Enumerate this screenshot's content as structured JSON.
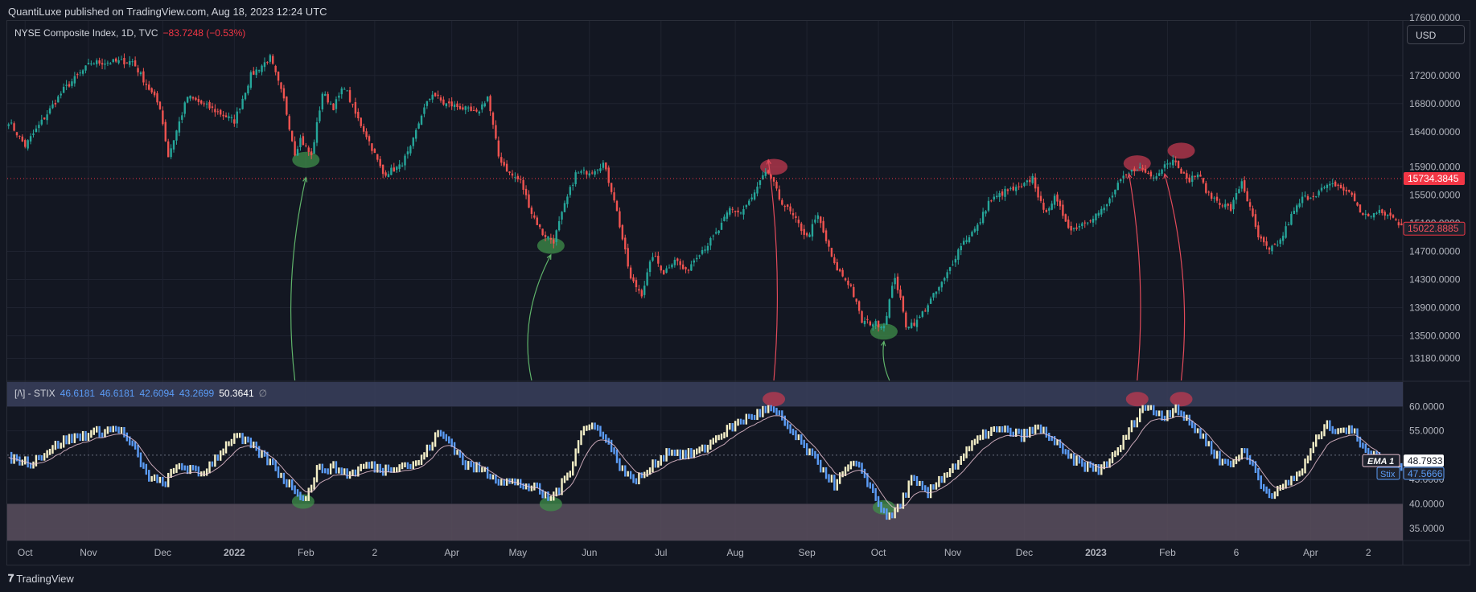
{
  "header": {
    "published": "QuantiLuxe published on TradingView.com, Aug 18, 2023 12:24 UTC"
  },
  "currency_label": "USD",
  "footer": {
    "brand": "TradingView",
    "logo_glyph": "𝟕"
  },
  "colors": {
    "background": "#131722",
    "grid": "#1f2330",
    "up": "#26a69a",
    "down": "#ef5350",
    "stix_up": "#f5f0c8",
    "stix_down": "#5b9cf6",
    "ema": "#e8c0d0",
    "price_line": "#f23645",
    "band_top": "#3a3f5c",
    "band_bottom": "#5b4f5e",
    "highlight_green": "#3f8f4a",
    "highlight_red": "#c0394f"
  },
  "chart_data": [
    {
      "type": "candlestick",
      "title": "NYSE Composite Index, 1D, TVC",
      "symbol": "NYSE Composite Index",
      "interval": "1D",
      "source": "TVC",
      "change_text": "−83.7248 (−0.53%)",
      "ylim": [
        12900,
        17700
      ],
      "y_ticks": [
        17200,
        16800,
        16400,
        15900,
        15500,
        14700,
        14300,
        13900,
        13500,
        13180
      ],
      "y_tick_labels": [
        "17200.0000",
        "16800.0000",
        "16400.0000",
        "15900.0000",
        "15500.0000",
        "14700.0000",
        "14300.0000",
        "13900.0000",
        "13500.0000",
        "13180.0000"
      ],
      "top_partial_label": "17600.0000",
      "current_price": 15734.3845,
      "current_price_label": "15734.3845",
      "secondary_price": 15022.8885,
      "secondary_price_label": "15022.8885",
      "partial_label": "15100.0000",
      "x_axis_labels": [
        "Oct",
        "Nov",
        "Dec",
        "2022",
        "Feb",
        "2",
        "Apr",
        "May",
        "Jun",
        "Jul",
        "Aug",
        "Sep",
        "Oct",
        "Nov",
        "Dec",
        "2023",
        "Feb",
        "6",
        "Apr",
        "2"
      ],
      "x_axis_bold": [
        "2022",
        "2023"
      ],
      "x_axis_index": [
        6,
        29,
        56,
        82,
        108,
        133,
        161,
        185,
        211,
        237,
        264,
        290,
        316,
        343,
        369,
        395,
        421,
        446,
        473,
        494
      ],
      "anchors": [
        [
          0,
          16550
        ],
        [
          6,
          16200
        ],
        [
          20,
          17000
        ],
        [
          30,
          17380
        ],
        [
          45,
          17400
        ],
        [
          55,
          16750
        ],
        [
          58,
          16050
        ],
        [
          65,
          16900
        ],
        [
          75,
          16700
        ],
        [
          82,
          16550
        ],
        [
          88,
          17200
        ],
        [
          95,
          17450
        ],
        [
          100,
          16850
        ],
        [
          104,
          16100
        ],
        [
          106,
          16300
        ],
        [
          110,
          16050
        ],
        [
          114,
          16950
        ],
        [
          118,
          16750
        ],
        [
          122,
          17050
        ],
        [
          126,
          16650
        ],
        [
          130,
          16350
        ],
        [
          136,
          15800
        ],
        [
          142,
          15900
        ],
        [
          146,
          16150
        ],
        [
          150,
          16650
        ],
        [
          154,
          16950
        ],
        [
          158,
          16800
        ],
        [
          164,
          16750
        ],
        [
          170,
          16650
        ],
        [
          174,
          16900
        ],
        [
          178,
          16050
        ],
        [
          182,
          15800
        ],
        [
          186,
          15700
        ],
        [
          190,
          15250
        ],
        [
          194,
          14950
        ],
        [
          198,
          14850
        ],
        [
          202,
          15350
        ],
        [
          206,
          15800
        ],
        [
          212,
          15850
        ],
        [
          216,
          15950
        ],
        [
          220,
          15450
        ],
        [
          226,
          14300
        ],
        [
          230,
          14100
        ],
        [
          234,
          14650
        ],
        [
          238,
          14400
        ],
        [
          242,
          14600
        ],
        [
          246,
          14400
        ],
        [
          250,
          14650
        ],
        [
          254,
          14800
        ],
        [
          258,
          15000
        ],
        [
          262,
          15300
        ],
        [
          266,
          15250
        ],
        [
          270,
          15450
        ],
        [
          274,
          15750
        ],
        [
          276,
          15820
        ],
        [
          278,
          15650
        ],
        [
          280,
          15450
        ],
        [
          284,
          15250
        ],
        [
          290,
          14900
        ],
        [
          294,
          15200
        ],
        [
          300,
          14500
        ],
        [
          306,
          14200
        ],
        [
          310,
          13700
        ],
        [
          314,
          13680
        ],
        [
          318,
          13650
        ],
        [
          322,
          14350
        ],
        [
          326,
          13650
        ],
        [
          330,
          13700
        ],
        [
          334,
          13950
        ],
        [
          340,
          14300
        ],
        [
          346,
          14800
        ],
        [
          352,
          15050
        ],
        [
          356,
          15400
        ],
        [
          362,
          15550
        ],
        [
          368,
          15600
        ],
        [
          372,
          15750
        ],
        [
          376,
          15250
        ],
        [
          380,
          15450
        ],
        [
          386,
          15000
        ],
        [
          392,
          15150
        ],
        [
          398,
          15300
        ],
        [
          404,
          15700
        ],
        [
          410,
          15900
        ],
        [
          416,
          15750
        ],
        [
          420,
          15950
        ],
        [
          424,
          16000
        ],
        [
          428,
          15700
        ],
        [
          432,
          15800
        ],
        [
          436,
          15500
        ],
        [
          440,
          15400
        ],
        [
          444,
          15300
        ],
        [
          448,
          15700
        ],
        [
          454,
          14900
        ],
        [
          458,
          14700
        ],
        [
          462,
          14850
        ],
        [
          466,
          15200
        ],
        [
          470,
          15450
        ],
        [
          474,
          15500
        ],
        [
          478,
          15600
        ],
        [
          482,
          15650
        ],
        [
          488,
          15500
        ],
        [
          492,
          15200
        ],
        [
          498,
          15250
        ],
        [
          502,
          15200
        ],
        [
          505,
          15100
        ]
      ],
      "highlights": [
        {
          "index": 108,
          "value": 16000,
          "color": "green"
        },
        {
          "index": 197,
          "value": 14780,
          "color": "green"
        },
        {
          "index": 278,
          "value": 15900,
          "color": "red"
        },
        {
          "index": 318,
          "value": 13560,
          "color": "green"
        },
        {
          "index": 410,
          "value": 15950,
          "color": "red"
        },
        {
          "index": 426,
          "value": 16130,
          "color": "red"
        }
      ]
    },
    {
      "type": "bar",
      "title": "[/\\] - STIX",
      "indicator": "STIX",
      "legend_values": [
        "46.6181",
        "46.6181",
        "42.6094",
        "43.2699"
      ],
      "legend_value_white": "50.3641",
      "legend_extra": "∅",
      "ylim": [
        32.5,
        64.5
      ],
      "y_ticks": [
        60,
        55,
        45,
        40,
        35
      ],
      "y_tick_labels": [
        "60.0000",
        "55.0000",
        "45.0000",
        "40.0000",
        "35.0000"
      ],
      "bands": [
        {
          "from": 60,
          "to": 65,
          "name": "overbought"
        },
        {
          "from": 32.5,
          "to": 40,
          "name": "oversold"
        }
      ],
      "mid_line": 50,
      "ema_label": "EMA 1",
      "ema_value": "48.7933",
      "stix_label": "Stix",
      "stix_value": "47.5666",
      "anchors": [
        [
          0,
          49.5
        ],
        [
          8,
          48.5
        ],
        [
          20,
          53
        ],
        [
          30,
          54.5
        ],
        [
          40,
          55.5
        ],
        [
          46,
          51
        ],
        [
          50,
          46
        ],
        [
          56,
          44
        ],
        [
          62,
          48
        ],
        [
          70,
          46
        ],
        [
          76,
          50
        ],
        [
          82,
          54
        ],
        [
          88,
          52
        ],
        [
          96,
          48
        ],
        [
          100,
          45
        ],
        [
          104,
          43
        ],
        [
          108,
          41
        ],
        [
          112,
          47
        ],
        [
          118,
          47.5
        ],
        [
          124,
          46
        ],
        [
          130,
          48
        ],
        [
          136,
          47
        ],
        [
          142,
          48
        ],
        [
          148,
          48
        ],
        [
          152,
          51
        ],
        [
          156,
          54.5
        ],
        [
          160,
          53
        ],
        [
          166,
          48
        ],
        [
          172,
          47
        ],
        [
          178,
          45
        ],
        [
          186,
          44
        ],
        [
          192,
          43
        ],
        [
          196,
          41
        ],
        [
          200,
          43
        ],
        [
          204,
          47
        ],
        [
          208,
          55
        ],
        [
          212,
          56
        ],
        [
          216,
          54.5
        ],
        [
          222,
          48
        ],
        [
          226,
          45
        ],
        [
          230,
          45.5
        ],
        [
          236,
          49
        ],
        [
          240,
          51
        ],
        [
          246,
          50
        ],
        [
          252,
          51
        ],
        [
          258,
          54
        ],
        [
          262,
          55.5
        ],
        [
          266,
          57
        ],
        [
          272,
          58.5
        ],
        [
          276,
          59.5
        ],
        [
          280,
          58
        ],
        [
          284,
          55
        ],
        [
          290,
          51
        ],
        [
          296,
          47
        ],
        [
          300,
          44
        ],
        [
          306,
          48
        ],
        [
          310,
          47
        ],
        [
          316,
          40
        ],
        [
          320,
          37
        ],
        [
          324,
          40
        ],
        [
          328,
          45
        ],
        [
          334,
          42
        ],
        [
          338,
          45
        ],
        [
          344,
          48
        ],
        [
          350,
          52
        ],
        [
          356,
          55
        ],
        [
          362,
          55
        ],
        [
          368,
          54
        ],
        [
          374,
          55.5
        ],
        [
          378,
          54
        ],
        [
          384,
          50
        ],
        [
          390,
          48
        ],
        [
          396,
          47
        ],
        [
          402,
          50
        ],
        [
          408,
          56
        ],
        [
          412,
          60
        ],
        [
          416,
          59
        ],
        [
          420,
          58
        ],
        [
          424,
          60
        ],
        [
          428,
          57
        ],
        [
          432,
          55
        ],
        [
          436,
          52
        ],
        [
          440,
          49
        ],
        [
          444,
          48
        ],
        [
          448,
          51
        ],
        [
          452,
          48
        ],
        [
          456,
          43
        ],
        [
          460,
          42
        ],
        [
          464,
          44
        ],
        [
          470,
          47
        ],
        [
          474,
          52
        ],
        [
          478,
          56
        ],
        [
          482,
          55.5
        ],
        [
          488,
          55
        ],
        [
          492,
          52
        ],
        [
          496,
          50
        ],
        [
          500,
          48
        ],
        [
          505,
          47.5
        ]
      ],
      "highlights": [
        {
          "index": 107,
          "value": 40.5,
          "color": "green"
        },
        {
          "index": 197,
          "value": 40.0,
          "color": "green"
        },
        {
          "index": 278,
          "value": 61.5,
          "color": "red"
        },
        {
          "index": 318,
          "value": 39.3,
          "color": "green"
        },
        {
          "index": 410,
          "value": 61.5,
          "color": "red"
        },
        {
          "index": 426,
          "value": 61.5,
          "color": "red"
        }
      ]
    }
  ],
  "arrows": [
    {
      "from_index": 104,
      "to_index": 108,
      "to_value": 15750,
      "color": "green"
    },
    {
      "from_index": 190,
      "to_index": 197,
      "to_value": 14650,
      "color": "green"
    },
    {
      "from_index": 278,
      "to_index": 276,
      "to_value": 16000,
      "color": "red"
    },
    {
      "from_index": 320,
      "to_index": 318,
      "to_value": 13420,
      "color": "green"
    },
    {
      "from_index": 410,
      "to_index": 407,
      "to_value": 15800,
      "color": "red"
    },
    {
      "from_index": 426,
      "to_index": 420,
      "to_value": 15800,
      "color": "red"
    }
  ]
}
